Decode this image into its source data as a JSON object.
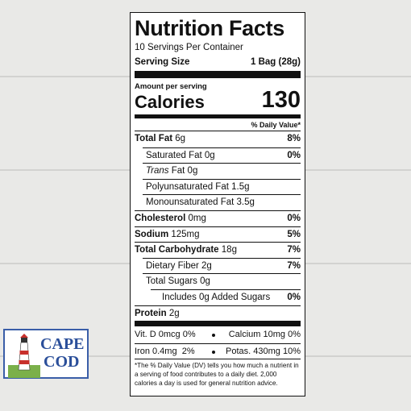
{
  "label": {
    "title": "Nutrition Facts",
    "servings": "10 Servings Per Container",
    "serving_size_label": "Serving Size",
    "serving_size_value": "1 Bag (28g)",
    "amount_per_serving": "Amount per serving",
    "calories_label": "Calories",
    "calories_value": "130",
    "dv_header": "% Daily Value*",
    "rows": [
      {
        "label": "Total Fat",
        "amount": "6g",
        "dv": "8%",
        "sub": [
          {
            "label": "Saturated Fat 0g",
            "dv": "0%"
          },
          {
            "label_italic": "Trans",
            "amount": "Fat 0g"
          },
          {
            "label": "Polyunsaturated Fat 1.5g"
          },
          {
            "label": "Monounsaturated Fat 3.5g"
          }
        ]
      },
      {
        "label": "Cholesterol",
        "amount": "0mg",
        "dv": "0%"
      },
      {
        "label": "Sodium",
        "amount": "125mg",
        "dv": "5%"
      },
      {
        "label": "Total Carbohydrate",
        "amount": "18g",
        "dv": "7%",
        "sub": [
          {
            "label": "Dietary Fiber 2g",
            "dv": "7%"
          },
          {
            "label": "Total Sugars 0g",
            "sub": [
              {
                "label": "Includes 0g Added Sugars",
                "dv": "0%"
              }
            ]
          }
        ]
      },
      {
        "label": "Protein",
        "amount": "2g"
      }
    ],
    "vitamins": [
      [
        "Vit. D 0mcg 0%",
        "Calcium 10mg 0%"
      ],
      [
        "Iron 0.4mg  2%",
        "Potas. 430mg 10%"
      ]
    ],
    "footnote": "*The % Daily Value (DV) tells you how much a nutrient in a serving of food contributes to a daily diet. 2,000 calories a day is used for general nutrition advice."
  },
  "logo": {
    "line1": "CAPE",
    "line2": "COD"
  }
}
